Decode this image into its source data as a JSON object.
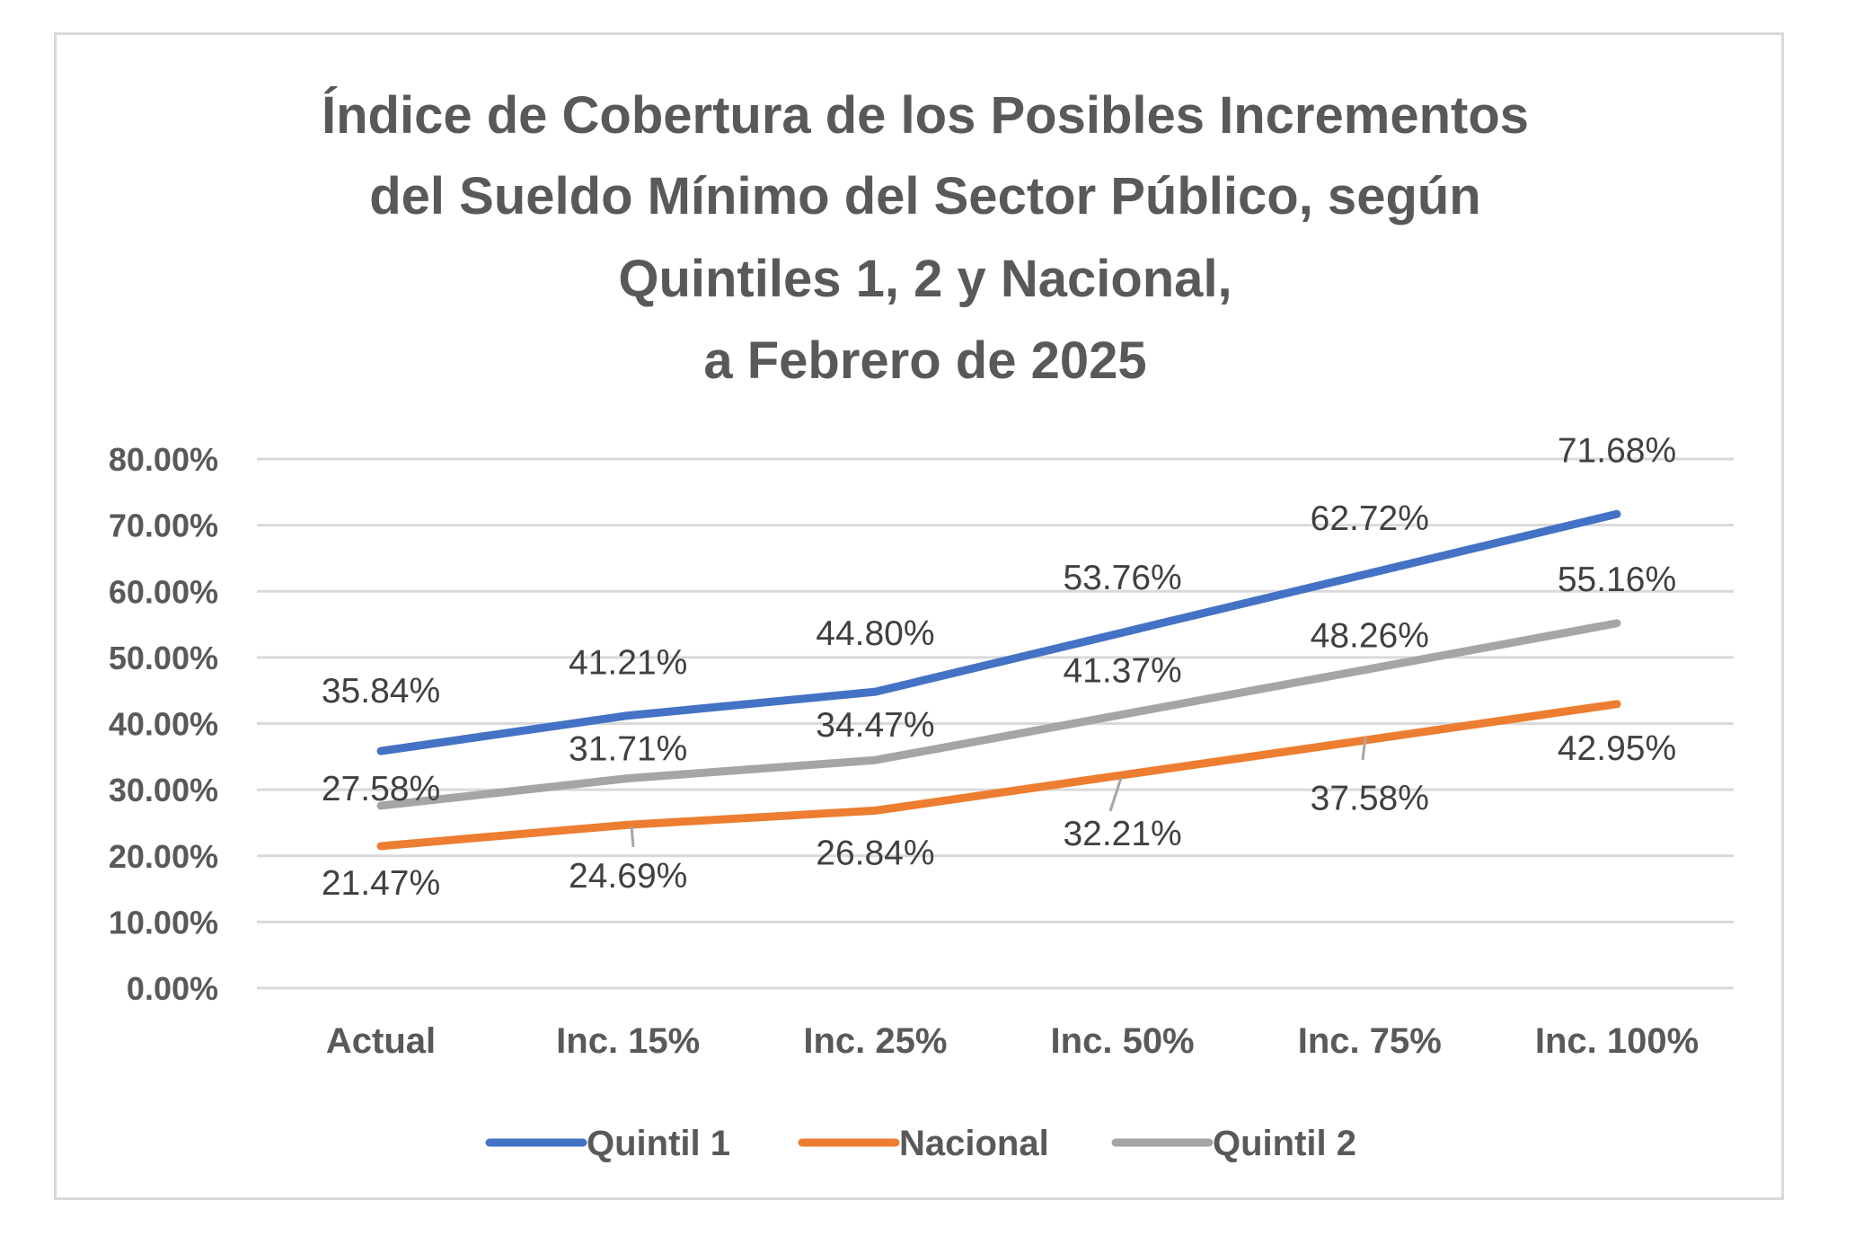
{
  "chart_data": {
    "type": "line",
    "title_lines": [
      "Índice de Cobertura de los Posibles Incrementos",
      "del Sueldo Mínimo del Sector Público, según",
      "Quintiles 1, 2 y Nacional,",
      "a Febrero de 2025"
    ],
    "categories": [
      "Actual",
      "Inc. 15%",
      "Inc. 25%",
      "Inc. 50%",
      "Inc. 75%",
      "Inc. 100%"
    ],
    "y_ticks": [
      "0.00%",
      "10.00%",
      "20.00%",
      "30.00%",
      "40.00%",
      "50.00%",
      "60.00%",
      "70.00%",
      "80.00%"
    ],
    "ylim": [
      0,
      80
    ],
    "grid": true,
    "legend_position": "bottom",
    "series": [
      {
        "name": "Quintil 1",
        "color": "#4472c4",
        "values": [
          35.84,
          41.21,
          44.8,
          53.76,
          62.72,
          71.68
        ],
        "labels": [
          "35.84%",
          "41.21%",
          "44.80%",
          "53.76%",
          "62.72%",
          "71.68%"
        ]
      },
      {
        "name": "Nacional",
        "color": "#ed7d31",
        "values": [
          21.47,
          24.69,
          26.84,
          32.21,
          37.58,
          42.95
        ],
        "labels": [
          "21.47%",
          "24.69%",
          "26.84%",
          "32.21%",
          "37.58%",
          "42.95%"
        ]
      },
      {
        "name": "Quintil 2",
        "color": "#a5a5a5",
        "values": [
          27.58,
          31.71,
          34.47,
          41.37,
          48.26,
          55.16
        ],
        "labels": [
          "27.58%",
          "31.71%",
          "34.47%",
          "41.37%",
          "48.26%",
          "55.16%"
        ]
      }
    ]
  }
}
